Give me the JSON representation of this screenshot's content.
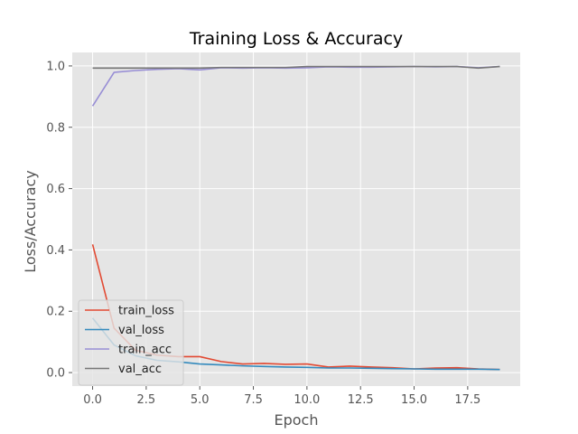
{
  "chart_data": {
    "type": "line",
    "title": "Training Loss & Accuracy",
    "xlabel": "Epoch",
    "ylabel": "Loss/Accuracy",
    "x": [
      0,
      1,
      2,
      3,
      4,
      5,
      6,
      7,
      8,
      9,
      10,
      11,
      12,
      13,
      14,
      15,
      16,
      17,
      18,
      19
    ],
    "xlim": [
      -0.95,
      19.95
    ],
    "ylim": [
      -0.044,
      1.044
    ],
    "xticks": [
      0.0,
      2.5,
      5.0,
      7.5,
      10.0,
      12.5,
      15.0,
      17.5
    ],
    "xtick_labels": [
      "0.0",
      "2.5",
      "5.0",
      "7.5",
      "10.0",
      "12.5",
      "15.0",
      "17.5"
    ],
    "yticks": [
      0.0,
      0.2,
      0.4,
      0.6,
      0.8,
      1.0
    ],
    "ytick_labels": [
      "0.0",
      "0.2",
      "0.4",
      "0.6",
      "0.8",
      "1.0"
    ],
    "grid": true,
    "legend_position": "lower-left",
    "background_color": "#e5e5e5",
    "grid_color": "#ffffff",
    "series": [
      {
        "name": "train_loss",
        "color": "#e24a33",
        "values": [
          0.418,
          0.145,
          0.073,
          0.057,
          0.052,
          0.052,
          0.036,
          0.028,
          0.03,
          0.027,
          0.028,
          0.018,
          0.021,
          0.018,
          0.016,
          0.012,
          0.015,
          0.016,
          0.012,
          0.01
        ]
      },
      {
        "name": "val_loss",
        "color": "#348abd",
        "values": [
          0.178,
          0.09,
          0.055,
          0.04,
          0.035,
          0.028,
          0.025,
          0.022,
          0.02,
          0.018,
          0.017,
          0.015,
          0.015,
          0.014,
          0.013,
          0.012,
          0.011,
          0.011,
          0.011,
          0.01
        ]
      },
      {
        "name": "train_acc",
        "color": "#988ed5",
        "values": [
          0.869,
          0.979,
          0.985,
          0.989,
          0.991,
          0.987,
          0.994,
          0.993,
          0.994,
          0.993,
          0.994,
          0.997,
          0.996,
          0.996,
          0.997,
          0.998,
          0.997,
          0.998,
          0.994,
          0.998
        ]
      },
      {
        "name": "val_acc",
        "color": "#777777",
        "values": [
          0.993,
          0.993,
          0.993,
          0.993,
          0.993,
          0.993,
          0.995,
          0.995,
          0.995,
          0.995,
          0.998,
          0.998,
          0.998,
          0.998,
          0.998,
          0.998,
          0.998,
          0.998,
          0.993,
          0.998
        ]
      }
    ]
  }
}
